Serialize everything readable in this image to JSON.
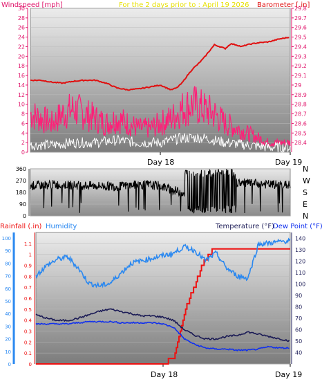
{
  "header": {
    "left_label": "Windspeed [mph]",
    "center_label": "For the 2 days prior to : April 19 2026",
    "right_label": "Barometer [.in]"
  },
  "colors": {
    "windspeed": "#ff1f78",
    "barometer": "#e01010",
    "gust_white": "#ffffff",
    "direction": "#000000",
    "rainfall": "#ee1111",
    "humidity": "#2a88f0",
    "temperature": "#1a1a55",
    "dew_point": "#1030ee",
    "plot_bg_top": "#ededed",
    "plot_bg_bottom": "#7e7e7e"
  },
  "chart_data": [
    {
      "type": "line",
      "name": "wind-barometer",
      "title": "For the 2 days prior to : April 19 2026",
      "left_axis_label": "Windspeed [mph]",
      "right_axis_label": "Barometer [.in]",
      "left_ticks": [
        "0",
        "2",
        "4",
        "6",
        "8",
        "10",
        "12",
        "14",
        "16",
        "18",
        "20",
        "22",
        "24",
        "26",
        "28",
        "30"
      ],
      "right_ticks": [
        "28.4",
        "28.5",
        "28.6",
        "28.7",
        "28.8",
        "28.9",
        "29",
        "29.1",
        "29.2",
        "29.3",
        "29.4",
        "29.5",
        "29.6",
        "29.7",
        "29.8"
      ],
      "ylim_left": [
        0,
        30
      ],
      "ylim_right": [
        28.3,
        29.8
      ],
      "x_ticks": [
        "Day 18",
        "Day 19"
      ],
      "series": [
        {
          "name": "Barometer [.in]",
          "axis": "right",
          "x_hours": [
            0,
            2,
            4,
            6,
            8,
            10,
            12,
            14,
            16,
            18,
            20,
            22,
            24,
            26,
            27,
            28,
            29,
            30,
            31,
            32,
            33,
            34,
            35,
            36,
            37,
            38,
            39,
            40,
            42,
            44,
            46,
            48
          ],
          "values": [
            29.05,
            29.05,
            29.03,
            29.02,
            29.04,
            29.05,
            29.05,
            29.02,
            28.97,
            28.95,
            28.96,
            28.98,
            29.0,
            28.95,
            28.97,
            29.02,
            29.1,
            29.17,
            29.22,
            29.28,
            29.35,
            29.42,
            29.4,
            29.38,
            29.43,
            29.42,
            29.4,
            29.42,
            29.44,
            29.45,
            29.48,
            29.5
          ]
        },
        {
          "name": "Windspeed [mph]",
          "axis": "left",
          "x_hours": [
            0,
            2,
            4,
            6,
            8,
            10,
            12,
            14,
            16,
            18,
            20,
            22,
            24,
            26,
            28,
            30,
            32,
            34,
            36,
            38,
            40,
            42,
            44,
            46,
            48
          ],
          "values": [
            8,
            7,
            6,
            8,
            9,
            8,
            7,
            6,
            7,
            6,
            5,
            5,
            6,
            7,
            9,
            10,
            9,
            8,
            6,
            5,
            4,
            3,
            2,
            2,
            2
          ]
        },
        {
          "name": "Gust (white)",
          "axis": "left",
          "x_hours": [
            0,
            4,
            8,
            12,
            16,
            20,
            24,
            28,
            32,
            36,
            40,
            44,
            48
          ],
          "values": [
            1.5,
            1.5,
            2,
            2,
            2.5,
            2,
            2,
            3,
            3,
            2,
            1.5,
            1,
            1
          ]
        }
      ]
    },
    {
      "type": "line",
      "name": "wind-direction",
      "ticks": [
        "360",
        "270",
        "180",
        "90",
        "0"
      ],
      "ylim": [
        0,
        360
      ],
      "compass_labels": [
        "N",
        "W",
        "S",
        "E",
        "N"
      ],
      "series": [
        {
          "name": "Wind direction",
          "x_hours": [
            0,
            4,
            8,
            12,
            16,
            20,
            24,
            26,
            28,
            30,
            32,
            34,
            36,
            40,
            44,
            48
          ],
          "values": [
            230,
            240,
            235,
            230,
            225,
            240,
            230,
            200,
            180,
            160,
            190,
            250,
            260,
            250,
            240,
            235
          ]
        }
      ]
    },
    {
      "type": "line",
      "name": "rain-humidity-temp",
      "left_label_1": "Rainfall (.in)",
      "left_label_2": "Humidity",
      "right_label_1": "Temperature (°F)",
      "right_label_2": "Dew Point (°F)",
      "rain_ticks": [
        "0",
        "0.1",
        "0.2",
        "0.3",
        "0.4",
        "0.5",
        "0.6",
        "0.7",
        "0.8",
        "0.9",
        "1",
        "1.1"
      ],
      "humidity_ticks": [
        "0",
        "10",
        "20",
        "30",
        "40",
        "50",
        "60",
        "70",
        "80",
        "90",
        "100"
      ],
      "temp_ticks": [
        "40",
        "50",
        "60",
        "70",
        "80",
        "90",
        "100",
        "110",
        "120",
        "130",
        "140"
      ],
      "ylim_rain": [
        0,
        1.2
      ],
      "ylim_humidity": [
        0,
        100
      ],
      "ylim_temp": [
        30,
        145
      ],
      "x_ticks": [
        "Day 18",
        "Day 19"
      ],
      "series": [
        {
          "name": "Rainfall (.in)",
          "axis": "rain",
          "x_hours": [
            0,
            24,
            26,
            27,
            28,
            29,
            30,
            31,
            32,
            33,
            34,
            35,
            36,
            42,
            48
          ],
          "values": [
            0,
            0,
            0.05,
            0.25,
            0.45,
            0.6,
            0.72,
            0.85,
            0.95,
            1.02,
            1.05,
            1.07,
            1.07,
            1.07,
            1.07
          ]
        },
        {
          "name": "Humidity",
          "axis": "humidity",
          "x_hours": [
            0,
            2,
            4,
            6,
            8,
            10,
            12,
            14,
            16,
            18,
            20,
            22,
            24,
            26,
            28,
            30,
            32,
            34,
            36,
            38,
            40,
            42,
            44,
            46,
            48
          ],
          "values": [
            70,
            78,
            83,
            85,
            76,
            64,
            62,
            64,
            72,
            80,
            82,
            84,
            86,
            88,
            93,
            90,
            82,
            88,
            76,
            70,
            68,
            95,
            96,
            97,
            98
          ]
        },
        {
          "name": "Temperature (°F)",
          "axis": "temp",
          "x_hours": [
            0,
            2,
            4,
            6,
            8,
            10,
            12,
            14,
            16,
            18,
            20,
            22,
            24,
            26,
            28,
            30,
            32,
            34,
            36,
            38,
            40,
            42,
            44,
            46,
            48
          ],
          "values": [
            73,
            70,
            68,
            68,
            70,
            73,
            76,
            78,
            76,
            74,
            72,
            72,
            71,
            68,
            60,
            55,
            52,
            52,
            54,
            55,
            58,
            56,
            54,
            52,
            50
          ]
        },
        {
          "name": "Dew Point (°F)",
          "axis": "temp",
          "x_hours": [
            0,
            2,
            4,
            6,
            8,
            10,
            12,
            14,
            16,
            18,
            20,
            22,
            24,
            26,
            28,
            30,
            32,
            34,
            36,
            38,
            40,
            42,
            44,
            46,
            48
          ],
          "values": [
            65,
            65,
            65,
            65,
            66,
            67,
            67,
            67,
            66,
            66,
            66,
            66,
            65,
            62,
            52,
            47,
            44,
            43,
            43,
            42,
            42,
            43,
            45,
            44,
            44
          ]
        }
      ]
    }
  ]
}
